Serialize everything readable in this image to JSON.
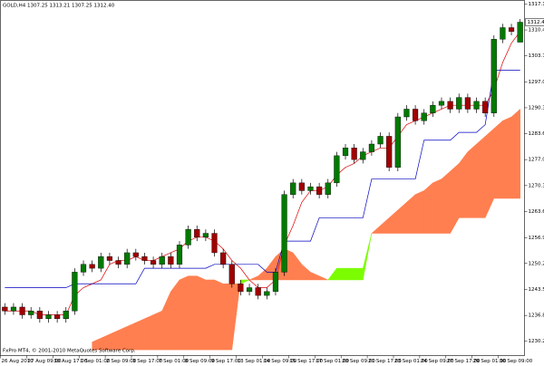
{
  "chart_data": {
    "type": "candlestick",
    "title": "GOLD,H4 1307.25 1313.21 1307.25 1312.40",
    "footer": "FxPro MT4, © 2001-2010 MetaQuotes Software Corp.",
    "categories": [
      "26 Aug 2010",
      null,
      null,
      "27 Aug 09:00",
      null,
      null,
      "30 Aug 17:00",
      null,
      null,
      "1 Sep 01:00",
      null,
      null,
      "2 Sep 09:00",
      null,
      null,
      "3 Sep 17:00",
      null,
      null,
      "7 Sep 01:00",
      null,
      null,
      "8 Sep 09:00",
      null,
      null,
      "9 Sep 17:00",
      null,
      null,
      "13 Sep 01:00",
      null,
      null,
      "14 Sep 09:00",
      null,
      null,
      "15 Sep 17:00",
      null,
      null,
      "17 Sep 01:00",
      null,
      null,
      "20 Sep 09:00",
      null,
      null,
      "21 Sep 17:00",
      null,
      null,
      "23 Sep 01:00",
      null,
      null,
      "24 Sep 09:00",
      null,
      null,
      "27 Sep 17:00",
      null,
      null,
      "29 Sep 01:00",
      null,
      null,
      "30 Sep 09:00",
      null,
      null
    ],
    "open": [
      1239,
      1238,
      1239,
      1237,
      1238,
      1236,
      1237,
      1236,
      1238,
      1248,
      1250,
      1249,
      1252,
      1251,
      1250,
      1253,
      1252,
      1251,
      1250,
      1252,
      1250,
      1255,
      1259,
      1257,
      1258,
      1253,
      1250,
      1245,
      1243,
      1244,
      1242,
      1243,
      1248,
      1268,
      1271,
      1269,
      1270,
      1268,
      1271,
      1278,
      1280,
      1277,
      1279,
      1281,
      1283,
      1275,
      1288,
      1290,
      1287,
      1289,
      1291,
      1292,
      1290,
      1293,
      1290,
      1292,
      1289,
      1308,
      1311,
      1307.25
    ],
    "high": [
      1240,
      1240,
      1240,
      1239,
      1239,
      1238,
      1238,
      1239,
      1249,
      1251,
      1251,
      1253,
      1253,
      1252,
      1254,
      1254,
      1253,
      1252,
      1253,
      1253,
      1256,
      1260,
      1260,
      1259,
      1259,
      1254,
      1251,
      1246,
      1245,
      1245,
      1244,
      1249,
      1269,
      1272,
      1272,
      1271,
      1271,
      1272,
      1279,
      1281,
      1281,
      1280,
      1282,
      1284,
      1284,
      1289,
      1291,
      1291,
      1290,
      1292,
      1293,
      1293,
      1294,
      1294,
      1293,
      1293,
      1309,
      1312,
      1312,
      1313.21
    ],
    "low": [
      1237,
      1237,
      1236,
      1236,
      1235,
      1235,
      1235,
      1235,
      1237,
      1247,
      1248,
      1248,
      1250,
      1249,
      1249,
      1251,
      1250,
      1249,
      1249,
      1249,
      1249,
      1254,
      1256,
      1256,
      1252,
      1249,
      1244,
      1242,
      1242,
      1241,
      1241,
      1242,
      1247,
      1267,
      1268,
      1268,
      1267,
      1267,
      1270,
      1277,
      1276,
      1276,
      1278,
      1280,
      1274,
      1274,
      1287,
      1286,
      1286,
      1288,
      1290,
      1289,
      1289,
      1289,
      1289,
      1288,
      1288,
      1307,
      1309,
      1307.25
    ],
    "close": [
      1238,
      1239,
      1237,
      1238,
      1236,
      1237,
      1236,
      1238,
      1248,
      1250,
      1249,
      1252,
      1251,
      1250,
      1253,
      1252,
      1251,
      1250,
      1252,
      1250,
      1255,
      1259,
      1257,
      1258,
      1253,
      1250,
      1245,
      1243,
      1244,
      1242,
      1243,
      1248,
      1268,
      1271,
      1269,
      1270,
      1268,
      1271,
      1278,
      1280,
      1277,
      1279,
      1281,
      1283,
      1275,
      1288,
      1290,
      1287,
      1289,
      1291,
      1292,
      1290,
      1293,
      1290,
      1292,
      1289,
      1308,
      1311,
      1310,
      1312.4
    ],
    "up_color": "#007a00",
    "down_color": "#a00000",
    "wick_color": "#000000",
    "lines": [
      {
        "color": "#e00000",
        "values": [
          1238,
          1238,
          1238,
          1238,
          1237,
          1237,
          1237,
          1237,
          1242,
          1244,
          1245,
          1246,
          1250,
          1251,
          1251,
          1252,
          1251,
          1251,
          1252,
          1253,
          1254,
          1256,
          1257,
          1257,
          1256,
          1254,
          1251,
          1249,
          1246,
          1244,
          1244,
          1246,
          1255,
          1260,
          1266,
          1269,
          1269,
          1270,
          1273,
          1275,
          1276,
          1278,
          1279,
          1280,
          1280,
          1283,
          1286,
          1287,
          1288,
          1289,
          1290,
          1291,
          1291,
          1291,
          1291,
          1291,
          1295,
          1302,
          1307,
          1310
        ]
      },
      {
        "color": "#0000c0",
        "values": [
          1244,
          1244,
          1244,
          1244,
          1244,
          1244,
          1244,
          1244,
          1245,
          1245,
          1245,
          1245,
          1245,
          1245,
          1245,
          1245,
          1249,
          1249,
          1249,
          1249,
          1249,
          1249,
          1249,
          1249,
          1250,
          1250,
          1250,
          1250,
          1250,
          1250,
          1248,
          1248,
          1256,
          1256,
          1256,
          1256,
          1262,
          1262,
          1262,
          1262,
          1262,
          1262,
          1272,
          1272,
          1272,
          1272,
          1272,
          1272,
          1282,
          1282,
          1282,
          1282,
          1284,
          1284,
          1284,
          1286,
          1300,
          1300,
          1300,
          1300
        ]
      }
    ],
    "cloud": {
      "span_a": [
        null,
        null,
        null,
        null,
        null,
        null,
        null,
        null,
        null,
        null,
        1228,
        1228,
        1228,
        1228,
        1228,
        1228,
        1228,
        1228,
        1228,
        1228,
        1228,
        1228,
        1228,
        1228,
        1228,
        1228,
        1228,
        1246,
        1246,
        1246,
        1246,
        1246,
        1246,
        1246,
        1246,
        1246,
        1246,
        1246,
        1249,
        1249,
        1249,
        1249,
        1258,
        1258,
        1258,
        1258,
        1258,
        1258,
        1258,
        1258,
        1258,
        1258,
        1262,
        1262,
        1262,
        1262,
        1267,
        1267,
        1267,
        1267
      ],
      "span_b": [
        null,
        null,
        null,
        null,
        null,
        null,
        null,
        null,
        null,
        null,
        1230,
        1231,
        1232,
        1233,
        1234,
        1235,
        1236,
        1237,
        1238,
        1243,
        1246,
        1247,
        1247,
        1246,
        1246,
        1245,
        1245,
        1245,
        1246,
        1247,
        1249,
        1252,
        1254,
        1253,
        1250,
        1248,
        1247,
        1246,
        1246,
        1246,
        1246,
        1246,
        1258,
        1260,
        1262,
        1264,
        1266,
        1268,
        1269,
        1271,
        1272,
        1274,
        1276,
        1279,
        1281,
        1283,
        1285,
        1287,
        1288,
        1290
      ],
      "bull_color": "#7cfc00",
      "bear_color": "#ff7f50"
    },
    "last_price": {
      "value": 1312.4,
      "label": "1312.40"
    },
    "ylim": [
      1226.5,
      1318
    ],
    "yticks": [
      {
        "value": 1317.1,
        "label": "1317.10"
      },
      {
        "value": 1310.4,
        "label": "1310.40"
      },
      1303.75,
      1297.05,
      1290.35,
      1283.65,
      {
        "value": 1277,
        "label": "1277.00"
      },
      {
        "value": 1270.3,
        "label": "1270.30"
      },
      1263.6,
      {
        "value": 1256.9,
        "label": "1256.90"
      },
      1250.25,
      1243.55,
      1236.85,
      {
        "value": 1230.2,
        "label": "1230.20"
      }
    ]
  }
}
